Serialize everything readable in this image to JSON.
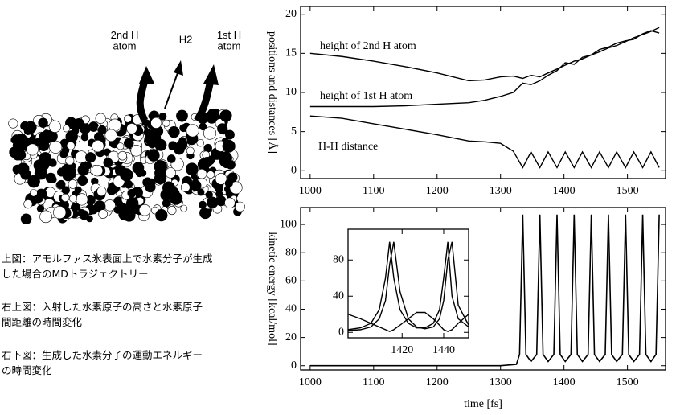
{
  "figure": {
    "labels": {
      "second_h": "2nd H\natom",
      "h2": "H2",
      "first_h": "1st H\natom"
    },
    "captions": [
      "上図：アモルファス氷表面上で水素分子が生成した場合のMDトラジェクトリー",
      "右上図：入射した水素原子の高さと水素原子間距離の時間変化",
      "右下図：生成した水素分子の運動エネルギーの時間変化"
    ]
  },
  "chart_data": [
    {
      "type": "line",
      "ylabel": "positions and distances [Å]",
      "x": [
        1000,
        1050,
        1100,
        1150,
        1200,
        1250,
        1275,
        1300,
        1320,
        1335,
        1348,
        1362,
        1375,
        1389,
        1402,
        1416,
        1429,
        1443,
        1456,
        1470,
        1483,
        1497,
        1510,
        1524,
        1537,
        1550
      ],
      "series": [
        {
          "name": "height of 2nd H atom",
          "color": "#000000",
          "values": [
            15,
            14.6,
            14,
            13.3,
            12.5,
            11.5,
            11.6,
            12,
            12.1,
            11.8,
            12.2,
            12,
            12.5,
            13,
            13.5,
            14,
            14.3,
            14.8,
            15.2,
            15.7,
            16,
            16.5,
            17,
            17.4,
            17.8,
            18.3
          ]
        },
        {
          "name": "height of 1st H atom",
          "color": "#000000",
          "values": [
            8.2,
            8.2,
            8.2,
            8.3,
            8.5,
            8.7,
            9,
            9.5,
            10,
            11.2,
            11,
            11.5,
            12.2,
            12.8,
            13.8,
            13.6,
            14.5,
            14.8,
            15.5,
            15.8,
            16.3,
            16.6,
            16.8,
            17.5,
            17.9,
            17.6
          ]
        },
        {
          "name": "H-H distance",
          "color": "#000000",
          "values": [
            7,
            6.7,
            6,
            5.3,
            4.6,
            3.8,
            3.7,
            3.5,
            2.5,
            0.4,
            2.4,
            0.4,
            2.4,
            0.4,
            2.4,
            0.4,
            2.4,
            0.4,
            2.4,
            0.4,
            2.4,
            0.4,
            2.4,
            0.4,
            2.4,
            0.4
          ]
        }
      ],
      "xlim": [
        985,
        1560
      ],
      "xticks": [
        1000,
        1100,
        1200,
        1300,
        1400,
        1500
      ],
      "ylim": [
        -1,
        21
      ],
      "yticks": [
        0,
        5,
        10,
        15,
        20
      ]
    },
    {
      "type": "line",
      "ylabel": "kinetic energy [kcal/mol]",
      "xlabel": "time [fs]",
      "x": [
        1000,
        1300,
        1325,
        1330,
        1335,
        1340,
        1348,
        1357,
        1362,
        1367,
        1375,
        1384,
        1389,
        1394,
        1402,
        1411,
        1416,
        1421,
        1429,
        1438,
        1443,
        1448,
        1456,
        1465,
        1470,
        1475,
        1483,
        1492,
        1497,
        1502,
        1510,
        1519,
        1524,
        1529,
        1537,
        1545,
        1550
      ],
      "series": [
        {
          "color": "#000000",
          "values": [
            0,
            0,
            1,
            8,
            107,
            8,
            3,
            8,
            107,
            8,
            3,
            8,
            107,
            8,
            3,
            8,
            107,
            8,
            3,
            8,
            107,
            8,
            3,
            8,
            107,
            8,
            3,
            8,
            107,
            8,
            3,
            8,
            107,
            8,
            3,
            8,
            107
          ]
        }
      ],
      "xlim": [
        985,
        1560
      ],
      "xticks": [
        1000,
        1100,
        1200,
        1300,
        1400,
        1500
      ],
      "ylim": [
        -3,
        112
      ],
      "yticks": [
        0,
        20,
        40,
        60,
        80,
        100
      ]
    },
    {
      "type": "line",
      "x": [
        1394,
        1400,
        1405,
        1409,
        1412,
        1414,
        1416,
        1419,
        1423,
        1427,
        1431,
        1435,
        1438,
        1440,
        1442,
        1444,
        1447,
        1452
      ],
      "series": [
        {
          "color": "#000000",
          "values": [
            3,
            5,
            10,
            25,
            60,
            100,
            60,
            25,
            10,
            5,
            5,
            10,
            25,
            60,
            100,
            40,
            15,
            6
          ]
        },
        {
          "color": "#000000",
          "values": [
            2,
            3,
            6,
            15,
            35,
            75,
            100,
            45,
            15,
            6,
            4,
            6,
            15,
            35,
            80,
            100,
            30,
            8
          ]
        },
        {
          "color": "#000000",
          "values": [
            20,
            15,
            10,
            6,
            3,
            1,
            3,
            8,
            15,
            22,
            22,
            15,
            8,
            3,
            1,
            3,
            10,
            20
          ]
        }
      ],
      "xlim": [
        1394,
        1452
      ],
      "xticks": [
        1420,
        1440
      ],
      "ylim": [
        -6,
        114
      ],
      "yticks": [
        0,
        40,
        80
      ]
    }
  ]
}
